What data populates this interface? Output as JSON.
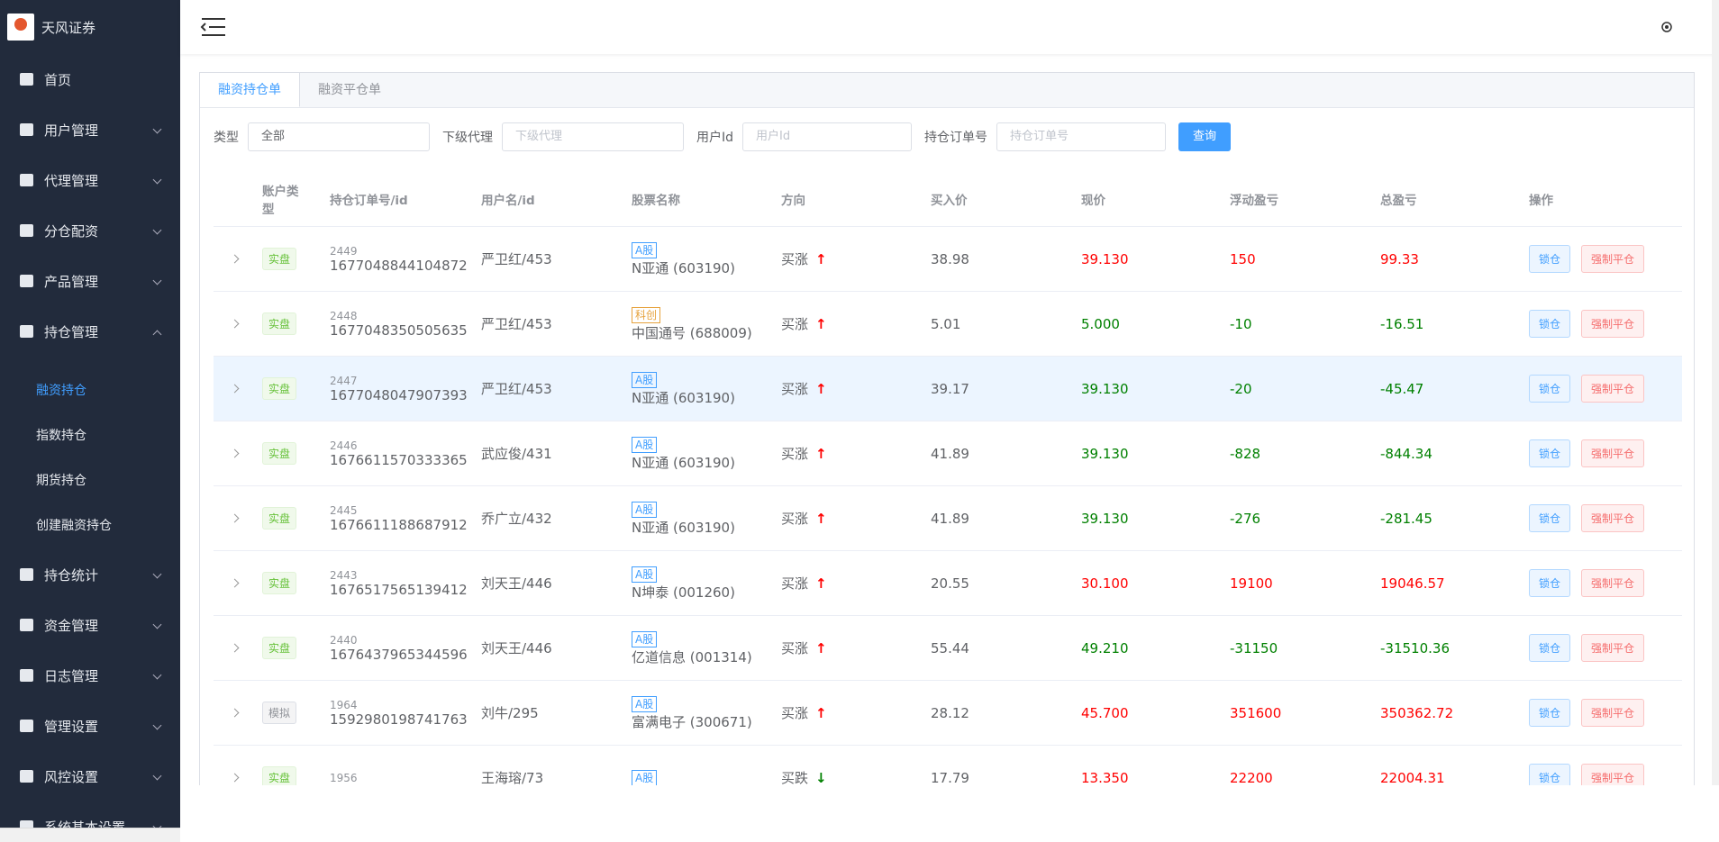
{
  "sidebar": {
    "brand": "天风证券",
    "menu_top": [
      "首页",
      "用户管理",
      "代理管理",
      "分仓配资",
      "产品管理",
      "持仓管理"
    ],
    "submenu": [
      "融资持仓",
      "指数持仓",
      "期货持仓",
      "创建融资持仓"
    ],
    "menu_bottom": [
      "持仓统计",
      "资金管理",
      "日志管理",
      "管理设置",
      "风控设置",
      "系统基本设置"
    ]
  },
  "tabs": [
    "融资持仓单",
    "融资平仓单"
  ],
  "filters": {
    "type_label": "类型",
    "type_value": "全部",
    "agent_label": "下级代理",
    "agent_placeholder": "下级代理",
    "user_label": "用户Id",
    "user_placeholder": "用户Id",
    "order_label": "持仓订单号",
    "order_placeholder": "持仓订单号",
    "search": "查询"
  },
  "table": {
    "headers": [
      "账户类型",
      "持仓订单号/id",
      "用户名/id",
      "股票名称",
      "方向",
      "买入价",
      "现价",
      "浮动盈亏",
      "总盈亏",
      "操作"
    ],
    "actions": [
      "锁仓",
      "强制平仓"
    ],
    "rows": [
      {
        "account": "实盘",
        "id": "2449",
        "order": "1677048844104872",
        "user": "严卫红/453",
        "market": "A股",
        "stock": "N亚通 (603190)",
        "direction": "买涨",
        "arrow": "up",
        "buy": "38.98",
        "price": "39.130",
        "float": "150",
        "total": "99.33"
      },
      {
        "account": "实盘",
        "id": "2448",
        "order": "1677048350505635",
        "user": "严卫红/453",
        "market": "科创",
        "stock": "中国通号 (688009)",
        "direction": "买涨",
        "arrow": "up",
        "buy": "5.01",
        "price": "5.000",
        "float": "-10",
        "total": "-16.51"
      },
      {
        "account": "实盘",
        "id": "2447",
        "order": "1677048047907393",
        "user": "严卫红/453",
        "market": "A股",
        "stock": "N亚通 (603190)",
        "direction": "买涨",
        "arrow": "up",
        "buy": "39.17",
        "price": "39.130",
        "float": "-20",
        "total": "-45.47"
      },
      {
        "account": "实盘",
        "id": "2446",
        "order": "1676611570333365",
        "user": "武应俊/431",
        "market": "A股",
        "stock": "N亚通 (603190)",
        "direction": "买涨",
        "arrow": "up",
        "buy": "41.89",
        "price": "39.130",
        "float": "-828",
        "total": "-844.34"
      },
      {
        "account": "实盘",
        "id": "2445",
        "order": "1676611188687912",
        "user": "乔广立/432",
        "market": "A股",
        "stock": "N亚通 (603190)",
        "direction": "买涨",
        "arrow": "up",
        "buy": "41.89",
        "price": "39.130",
        "float": "-276",
        "total": "-281.45"
      },
      {
        "account": "实盘",
        "id": "2443",
        "order": "1676517565139412",
        "user": "刘天王/446",
        "market": "A股",
        "stock": "N坤泰 (001260)",
        "direction": "买涨",
        "arrow": "up",
        "buy": "20.55",
        "price": "30.100",
        "float": "19100",
        "total": "19046.57"
      },
      {
        "account": "实盘",
        "id": "2440",
        "order": "1676437965344596",
        "user": "刘天王/446",
        "market": "A股",
        "stock": "亿道信息 (001314)",
        "direction": "买涨",
        "arrow": "up",
        "buy": "55.44",
        "price": "49.210",
        "float": "-31150",
        "total": "-31510.36"
      },
      {
        "account": "模拟",
        "id": "1964",
        "order": "1592980198741763",
        "user": "刘牛/295",
        "market": "A股",
        "stock": "富满电子 (300671)",
        "direction": "买涨",
        "arrow": "up",
        "buy": "28.12",
        "price": "45.700",
        "float": "351600",
        "total": "350362.72"
      },
      {
        "account": "实盘",
        "id": "1956",
        "user": "王海瑢/73",
        "market": "A股",
        "direction": "买跌",
        "arrow": "down",
        "buy": "17.79",
        "price": "13.350",
        "float": "22200",
        "total": "22004.31"
      }
    ]
  }
}
